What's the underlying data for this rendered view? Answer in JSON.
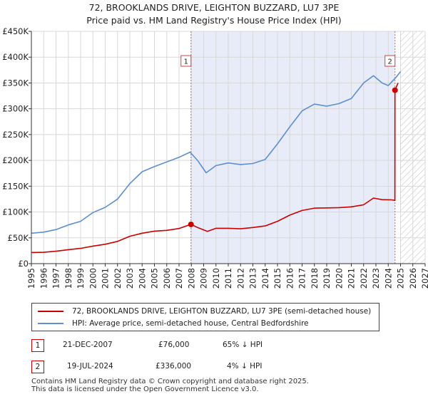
{
  "title_line1": "72, BROOKLANDS DRIVE, LEIGHTON BUZZARD, LU7 3PE",
  "title_line2": "Price paid vs. HM Land Registry's House Price Index (HPI)",
  "chart_data": {
    "type": "line",
    "xlim": [
      1995,
      2027
    ],
    "ylim": [
      0,
      450000
    ],
    "ytick_values": [
      0,
      50000,
      100000,
      150000,
      200000,
      250000,
      300000,
      350000,
      400000,
      450000
    ],
    "ytick_labels": [
      "£0",
      "£50K",
      "£100K",
      "£150K",
      "£200K",
      "£250K",
      "£300K",
      "£350K",
      "£400K",
      "£450K"
    ],
    "xtick_labels": [
      "1995",
      "1996",
      "1997",
      "1998",
      "1999",
      "2000",
      "2001",
      "2002",
      "2003",
      "2004",
      "2005",
      "2006",
      "2007",
      "2008",
      "2009",
      "2010",
      "2011",
      "2012",
      "2013",
      "2014",
      "2015",
      "2016",
      "2017",
      "2018",
      "2019",
      "2020",
      "2021",
      "2022",
      "2023",
      "2024",
      "2025",
      "2026",
      "2027"
    ],
    "shaded_span": [
      2007.97,
      2024.55
    ],
    "future_hatch_from": 2025.0,
    "series": [
      {
        "name": "72, BROOKLANDS DRIVE, LEIGHTON BUZZARD, LU7 3PE (semi-detached house)",
        "color": "#cc0000",
        "x": [
          1995,
          1996,
          1997,
          1998,
          1999,
          2000,
          2001,
          2002,
          2003,
          2004,
          2005,
          2006,
          2007,
          2007.97,
          2008.5,
          2009.3,
          2010,
          2011,
          2012,
          2013,
          2014,
          2015,
          2016,
          2017,
          2018,
          2019,
          2020,
          2021,
          2022,
          2022.8,
          2023.5,
          2024.3,
          2024.54,
          2024.55,
          2024.8
        ],
        "y": [
          21500,
          22000,
          24000,
          27000,
          29500,
          34000,
          37500,
          43000,
          53000,
          59000,
          63000,
          64500,
          68000,
          76000,
          70000,
          62500,
          68500,
          68500,
          67500,
          70000,
          73000,
          82000,
          94000,
          103000,
          107500,
          108000,
          108500,
          110000,
          114000,
          127000,
          124000,
          123500,
          122500,
          336000,
          350000
        ]
      },
      {
        "name": "HPI: Average price, semi-detached house, Central Bedfordshire",
        "color": "#5b8fd0",
        "x": [
          1995,
          1996,
          1997,
          1998,
          1999,
          2000,
          2001,
          2002,
          2003,
          2004,
          2005,
          2006,
          2007,
          2007.9,
          2008.5,
          2009.2,
          2010,
          2011,
          2012,
          2013,
          2014,
          2015,
          2016,
          2017,
          2018,
          2019,
          2020,
          2021,
          2022,
          2022.8,
          2023.5,
          2024.0,
          2024.6,
          2025.0
        ],
        "y": [
          59000,
          61000,
          66000,
          75000,
          82000,
          99000,
          109000,
          125000,
          155000,
          178000,
          188000,
          197000,
          206000,
          216000,
          200000,
          176000,
          190000,
          195000,
          192000,
          194000,
          202000,
          232000,
          265000,
          296000,
          309000,
          305000,
          310000,
          320000,
          350000,
          364000,
          350000,
          345000,
          360000,
          372000
        ]
      }
    ],
    "annotations": [
      {
        "label": "1",
        "x": 2007.97,
        "y": 76000
      },
      {
        "label": "2",
        "x": 2024.55,
        "y": 336000
      }
    ]
  },
  "legend": {
    "items": [
      {
        "label": "72, BROOKLANDS DRIVE, LEIGHTON BUZZARD, LU7 3PE (semi-detached house)",
        "color": "#cc0000"
      },
      {
        "label": "HPI: Average price, semi-detached house, Central Bedfordshire",
        "color": "#5b8fd0"
      }
    ]
  },
  "transactions": [
    {
      "num": "1",
      "date": "21-DEC-2007",
      "price": "£76,000",
      "hpi": "65% ↓ HPI"
    },
    {
      "num": "2",
      "date": "19-JUL-2024",
      "price": "£336,000",
      "hpi": "4% ↓ HPI"
    }
  ],
  "footer": {
    "line1": "Contains HM Land Registry data © Crown copyright and database right 2025.",
    "line2": "This data is licensed under the Open Government Licence v3.0."
  }
}
